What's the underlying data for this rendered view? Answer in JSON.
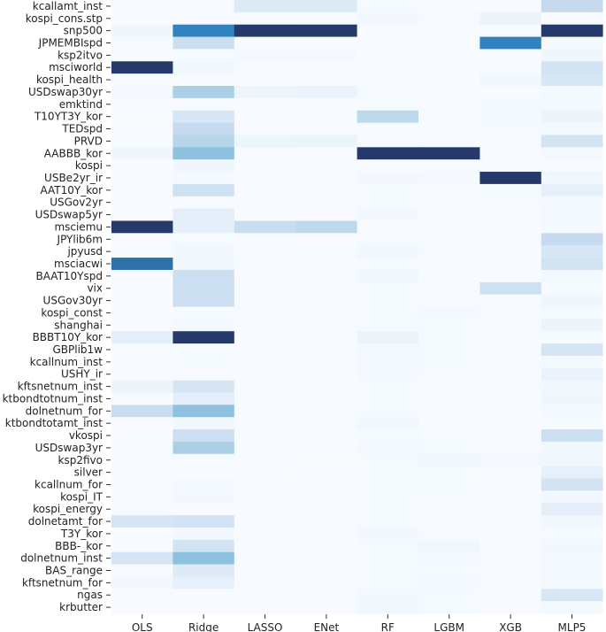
{
  "chart_data": {
    "type": "heatmap",
    "title": "",
    "xlabel": "",
    "ylabel": "",
    "columns": [
      "OLS",
      "Ridge",
      "LASSO",
      "ENet",
      "RF",
      "LGBM",
      "XGB",
      "MLP5"
    ],
    "rows": [
      "kcallamt_inst",
      "kospi_cons.stp",
      "snp500",
      "JPMEMBIspd",
      "ksp2itvo",
      "msciworld",
      "kospi_health",
      "USDswap30yr",
      "emktind",
      "T10YT3Y_kor",
      "TEDspd",
      "PRVD",
      "AABBB_kor",
      "kospi",
      "USBe2yr_ir",
      "AAT10Y_kor",
      "USGov2yr",
      "USDswap5yr",
      "msciemu",
      "JPYlib6m",
      "jpyusd",
      "msciacwi",
      "BAAT10Yspd",
      "vix",
      "USGov30yr",
      "kospi_const",
      "shanghai",
      "BBBT10Y_kor",
      "GBPlib1w",
      "kcallnum_inst",
      "USHY_ir",
      "kftsnetnum_inst",
      "ktbondtotnum_inst",
      "dolnetnum_for",
      "ktbondtotamt_inst",
      "vkospi",
      "USDswap3yr",
      "ksp2fivo",
      "silver",
      "kcallnum_for",
      "kospi_IT",
      "kospi_energy",
      "dolnetamt_for",
      "T3Y_kor",
      "BBB-_kor",
      "dolnetnum_inst",
      "BAS_range",
      "kftsnetnum_for",
      "ngas",
      "krbutter"
    ],
    "values": [
      [
        0.01,
        0.01,
        0.17,
        0.17,
        0.01,
        0.0,
        0.0,
        0.35
      ],
      [
        0.0,
        0.0,
        0.0,
        0.0,
        0.03,
        0.01,
        0.07,
        0.0
      ],
      [
        0.05,
        0.8,
        1.0,
        1.0,
        0.0,
        0.0,
        0.0,
        1.0
      ],
      [
        0.01,
        0.3,
        0.0,
        0.0,
        0.0,
        0.0,
        0.8,
        0.02
      ],
      [
        0.0,
        0.01,
        0.02,
        0.02,
        0.0,
        0.0,
        0.0,
        0.05
      ],
      [
        1.0,
        0.04,
        0.0,
        0.0,
        0.0,
        0.0,
        0.0,
        0.25
      ],
      [
        0.0,
        0.0,
        0.0,
        0.0,
        0.0,
        0.0,
        0.04,
        0.2
      ],
      [
        0.03,
        0.45,
        0.06,
        0.08,
        0.01,
        0.0,
        0.0,
        0.02
      ],
      [
        0.0,
        0.0,
        0.0,
        0.0,
        0.01,
        0.0,
        0.02,
        0.02
      ],
      [
        0.0,
        0.2,
        0.0,
        0.0,
        0.38,
        0.0,
        0.02,
        0.06
      ],
      [
        0.01,
        0.35,
        0.0,
        0.0,
        0.01,
        0.0,
        0.01,
        0.02
      ],
      [
        0.0,
        0.4,
        0.06,
        0.07,
        0.0,
        0.0,
        0.0,
        0.24
      ],
      [
        0.05,
        0.55,
        0.0,
        0.0,
        1.0,
        1.0,
        0.0,
        0.02
      ],
      [
        0.0,
        0.05,
        0.0,
        0.0,
        0.0,
        0.0,
        0.0,
        0.0
      ],
      [
        0.0,
        0.02,
        0.0,
        0.0,
        0.03,
        0.02,
        1.0,
        0.04
      ],
      [
        0.01,
        0.28,
        0.0,
        0.0,
        0.01,
        0.0,
        0.01,
        0.1
      ],
      [
        0.0,
        0.0,
        0.0,
        0.0,
        0.01,
        0.01,
        0.01,
        0.02
      ],
      [
        0.0,
        0.12,
        0.0,
        0.0,
        0.03,
        0.0,
        0.0,
        0.02
      ],
      [
        1.0,
        0.1,
        0.33,
        0.38,
        0.0,
        0.0,
        0.0,
        0.02
      ],
      [
        0.0,
        0.01,
        0.0,
        0.0,
        0.01,
        0.0,
        0.01,
        0.35
      ],
      [
        0.0,
        0.04,
        0.0,
        0.0,
        0.04,
        0.01,
        0.0,
        0.2
      ],
      [
        0.85,
        0.04,
        0.0,
        0.0,
        0.01,
        0.0,
        0.0,
        0.25
      ],
      [
        0.0,
        0.3,
        0.0,
        0.0,
        0.04,
        0.0,
        0.0,
        0.02
      ],
      [
        0.0,
        0.3,
        0.0,
        0.0,
        0.01,
        0.0,
        0.28,
        0.01
      ],
      [
        0.0,
        0.3,
        0.0,
        0.0,
        0.01,
        0.0,
        0.0,
        0.05
      ],
      [
        0.0,
        0.01,
        0.0,
        0.0,
        0.01,
        0.02,
        0.0,
        0.01
      ],
      [
        0.0,
        0.02,
        0.0,
        0.0,
        0.01,
        0.01,
        0.0,
        0.06
      ],
      [
        0.12,
        1.0,
        0.0,
        0.0,
        0.07,
        0.01,
        0.0,
        0.01
      ],
      [
        0.0,
        0.01,
        0.0,
        0.0,
        0.02,
        0.01,
        0.0,
        0.22
      ],
      [
        0.0,
        0.01,
        0.0,
        0.0,
        0.02,
        0.01,
        0.0,
        0.02
      ],
      [
        0.0,
        0.0,
        0.0,
        0.0,
        0.02,
        0.01,
        0.0,
        0.08
      ],
      [
        0.06,
        0.22,
        0.0,
        0.0,
        0.01,
        0.0,
        0.0,
        0.04
      ],
      [
        0.0,
        0.12,
        0.0,
        0.0,
        0.01,
        0.0,
        0.0,
        0.05
      ],
      [
        0.32,
        0.55,
        0.0,
        0.0,
        0.01,
        0.0,
        0.0,
        0.02
      ],
      [
        0.0,
        0.03,
        0.0,
        0.0,
        0.04,
        0.0,
        0.0,
        0.01
      ],
      [
        0.0,
        0.3,
        0.0,
        0.0,
        0.01,
        0.01,
        0.0,
        0.3
      ],
      [
        0.0,
        0.45,
        0.0,
        0.0,
        0.02,
        0.01,
        0.0,
        0.04
      ],
      [
        0.0,
        0.01,
        0.0,
        0.0,
        0.01,
        0.04,
        0.03,
        0.04
      ],
      [
        0.0,
        0.0,
        0.0,
        0.01,
        0.01,
        0.01,
        0.0,
        0.1
      ],
      [
        0.0,
        0.02,
        0.0,
        0.0,
        0.01,
        0.01,
        0.0,
        0.25
      ],
      [
        0.0,
        0.03,
        0.0,
        0.0,
        0.01,
        0.01,
        0.0,
        0.03
      ],
      [
        0.0,
        0.0,
        0.0,
        0.0,
        0.01,
        0.0,
        0.0,
        0.12
      ],
      [
        0.22,
        0.25,
        0.0,
        0.0,
        0.01,
        0.0,
        0.0,
        0.04
      ],
      [
        0.0,
        0.03,
        0.0,
        0.0,
        0.03,
        0.01,
        0.0,
        0.01
      ],
      [
        0.0,
        0.25,
        0.0,
        0.0,
        0.01,
        0.04,
        0.0,
        0.03
      ],
      [
        0.22,
        0.55,
        0.0,
        0.0,
        0.01,
        0.02,
        0.0,
        0.02
      ],
      [
        0.0,
        0.15,
        0.0,
        0.0,
        0.01,
        0.01,
        0.0,
        0.02
      ],
      [
        0.03,
        0.1,
        0.0,
        0.0,
        0.01,
        0.02,
        0.0,
        0.02
      ],
      [
        0.0,
        0.0,
        0.0,
        0.0,
        0.03,
        0.01,
        0.0,
        0.2
      ],
      [
        0.0,
        0.0,
        0.0,
        0.0,
        0.04,
        0.01,
        0.0,
        0.02
      ]
    ],
    "colormap": "Blues",
    "color_low": "#f7fbff",
    "color_high": "#253a6b",
    "value_range": [
      0,
      1
    ],
    "grid": false,
    "legend": "none"
  }
}
